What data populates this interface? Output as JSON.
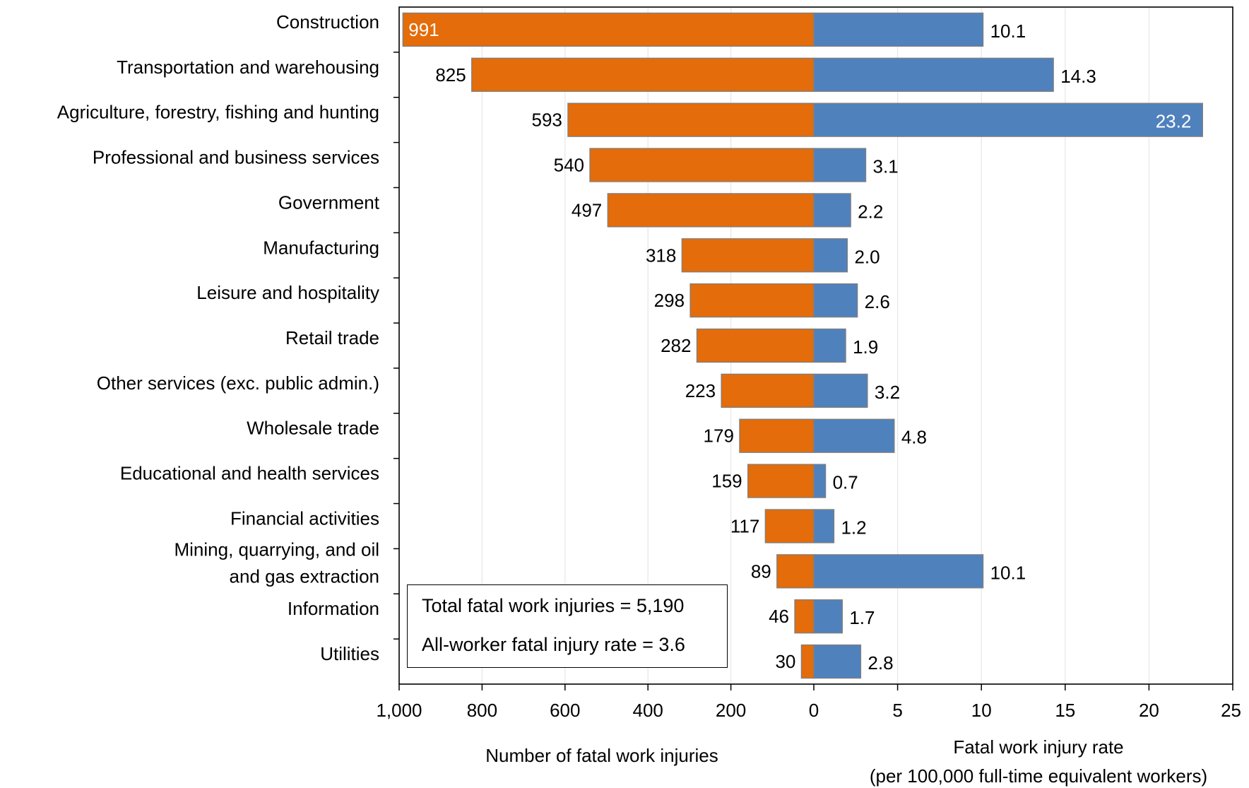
{
  "chart_data": {
    "type": "bar",
    "orientation": "horizontal-butterfly",
    "categories": [
      "Construction",
      "Transportation and warehousing",
      "Agriculture, forestry, fishing and hunting",
      "Professional and business services",
      "Government",
      "Manufacturing",
      "Leisure and hospitality",
      "Retail trade",
      "Other services (exc. public admin.)",
      "Wholesale trade",
      "Educational and health services",
      "Financial activities",
      "Mining, quarrying, and oil and gas extraction",
      "Information",
      "Utilities"
    ],
    "category_lines": [
      [
        "Construction"
      ],
      [
        "Transportation and warehousing"
      ],
      [
        "Agriculture, forestry, fishing and hunting"
      ],
      [
        "Professional and business services"
      ],
      [
        "Government"
      ],
      [
        "Manufacturing"
      ],
      [
        "Leisure and hospitality"
      ],
      [
        "Retail trade"
      ],
      [
        "Other services (exc. public admin.)"
      ],
      [
        "Wholesale trade"
      ],
      [
        "Educational and health services"
      ],
      [
        "Financial activities"
      ],
      [
        "Mining, quarrying, and oil",
        "and gas extraction"
      ],
      [
        "Information"
      ],
      [
        "Utilities"
      ]
    ],
    "series": [
      {
        "values": [
          991,
          825,
          593,
          540,
          497,
          318,
          298,
          282,
          223,
          179,
          159,
          117,
          89,
          46,
          30
        ],
        "labels": [
          "991",
          "825",
          "593",
          "540",
          "497",
          "318",
          "298",
          "282",
          "223",
          "179",
          "159",
          "117",
          "89",
          "46",
          "30"
        ],
        "color": "#E46C0A",
        "side": "left"
      },
      {
        "values": [
          10.1,
          14.3,
          23.2,
          3.1,
          2.2,
          2.0,
          2.6,
          1.9,
          3.2,
          4.8,
          0.7,
          1.2,
          10.1,
          1.7,
          2.8
        ],
        "labels": [
          "10.1",
          "14.3",
          "23.2",
          "3.1",
          "2.2",
          "2.0",
          "2.6",
          "1.9",
          "3.2",
          "4.8",
          "0.7",
          "1.2",
          "10.1",
          "1.7",
          "2.8"
        ],
        "color": "#4F81BD",
        "side": "right"
      }
    ],
    "left_axis": {
      "title": "Number of fatal work injuries",
      "range": [
        1000,
        0
      ],
      "ticks": [
        1000,
        800,
        600,
        400,
        200,
        0
      ],
      "tick_labels": [
        "1,000",
        "800",
        "600",
        "400",
        "200",
        "0"
      ]
    },
    "right_axis": {
      "title_lines": [
        "Fatal work injury rate",
        "(per 100,000 full-time equivalent workers)"
      ],
      "range": [
        0,
        25
      ],
      "ticks": [
        5,
        10,
        15,
        20,
        25
      ],
      "tick_labels": [
        "5",
        "10",
        "15",
        "20",
        "25"
      ]
    },
    "grid": true,
    "annotations": [
      "Total fatal work injuries = 5,190",
      "All-worker fatal injury rate = 3.6"
    ]
  }
}
